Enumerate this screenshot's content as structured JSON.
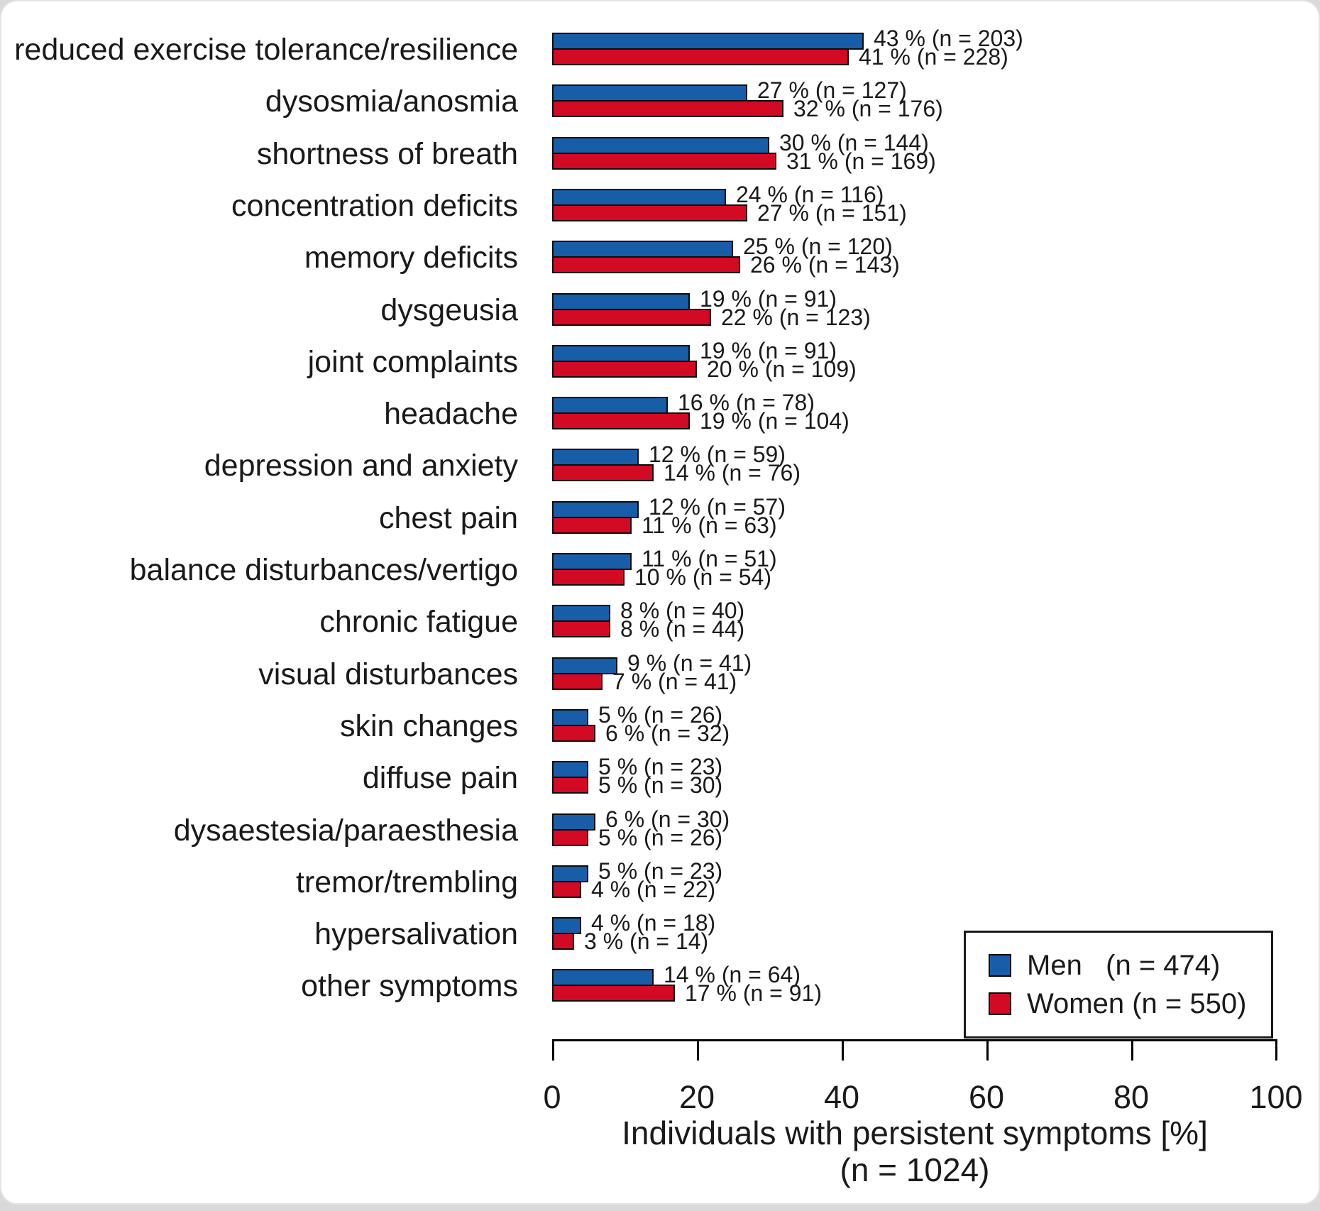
{
  "figure": {
    "card_background": "#ffffff",
    "page_background": "#d9d9d9",
    "bar_border_color": "#0d0d0d"
  },
  "chart_data": {
    "type": "bar",
    "orientation": "horizontal",
    "title": "",
    "xlabel": "Individuals with persistent symptoms [%]",
    "xlabel_subtitle": "(n = 1024)",
    "xlim": [
      0,
      100
    ],
    "xticks": [
      "0",
      "20",
      "40",
      "60",
      "80",
      "100"
    ],
    "grid": false,
    "legend_position": "bottom-right",
    "categories": [
      "reduced exercise tolerance/resilience",
      "dysosmia/anosmia",
      "shortness of breath",
      "concentration deficits",
      "memory deficits",
      "dysgeusia",
      "joint complaints",
      "headache",
      "depression and anxiety",
      "chest pain",
      "balance disturbances/vertigo",
      "chronic fatigue",
      "visual disturbances",
      "skin changes",
      "diffuse pain",
      "dysaestesia/paraesthesia",
      "tremor/trembling",
      "hypersalivation",
      "other symptoms"
    ],
    "series": [
      {
        "name": "Men",
        "legend_label": "Men   (n = 474)",
        "n_total": 474,
        "color": "#175DA8",
        "values": [
          43,
          27,
          30,
          24,
          25,
          19,
          19,
          16,
          12,
          12,
          11,
          8,
          9,
          5,
          5,
          6,
          5,
          4,
          14
        ],
        "counts": [
          203,
          127,
          144,
          116,
          120,
          91,
          91,
          78,
          59,
          57,
          51,
          40,
          41,
          26,
          23,
          30,
          23,
          18,
          64
        ],
        "point_labels": [
          "43 % (n = 203)",
          "27 % (n = 127)",
          "30 % (n = 144)",
          "24 % (n = 116)",
          "25 % (n = 120)",
          "19 % (n = 91)",
          "19 % (n = 91)",
          "16 % (n = 78)",
          "12 % (n = 59)",
          "12 % (n = 57)",
          "11 % (n = 51)",
          "8 % (n = 40)",
          "9 % (n = 41)",
          "5 % (n = 26)",
          "5 % (n = 23)",
          "6 % (n = 30)",
          "5 % (n = 23)",
          "4 % (n = 18)",
          "14 % (n = 64)"
        ]
      },
      {
        "name": "Women",
        "legend_label": "Women (n = 550)",
        "n_total": 550,
        "color": "#D20A23",
        "values": [
          41,
          32,
          31,
          27,
          26,
          22,
          20,
          19,
          14,
          11,
          10,
          8,
          7,
          6,
          5,
          5,
          4,
          3,
          17
        ],
        "counts": [
          228,
          176,
          169,
          151,
          143,
          123,
          109,
          104,
          76,
          63,
          54,
          44,
          41,
          32,
          30,
          26,
          22,
          14,
          91
        ],
        "point_labels": [
          "41 % (n = 228)",
          "32 % (n = 176)",
          "31 % (n = 169)",
          "27 % (n = 151)",
          "26 % (n = 143)",
          "22 % (n = 123)",
          "20 % (n = 109)",
          "19 % (n = 104)",
          "14 % (n = 76)",
          "11 % (n = 63)",
          "10 % (n = 54)",
          "8 % (n = 44)",
          "7 % (n = 41)",
          "6 % (n = 32)",
          "5 % (n = 30)",
          "5 % (n = 26)",
          "4 % (n = 22)",
          "3 % (n = 14)",
          "17 % (n = 91)"
        ]
      }
    ]
  }
}
